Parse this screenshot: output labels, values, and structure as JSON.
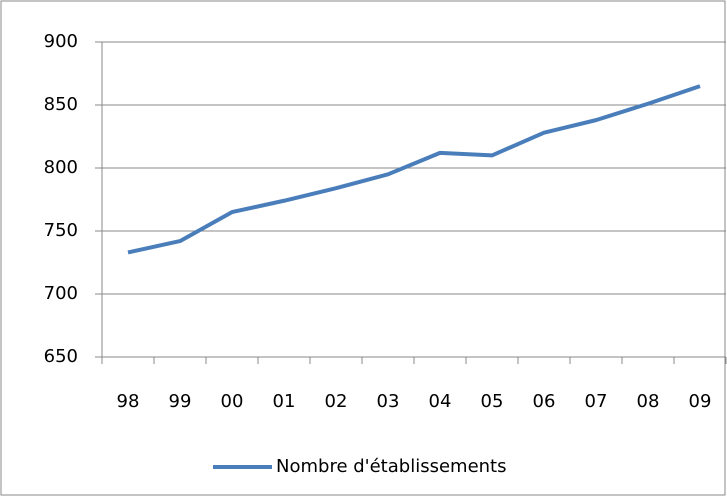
{
  "chart_data": {
    "type": "line",
    "categories": [
      "98",
      "99",
      "00",
      "01",
      "02",
      "03",
      "04",
      "05",
      "06",
      "07",
      "08",
      "09"
    ],
    "series": [
      {
        "name": "Nombre d'établissements",
        "color": "#4a7ebb",
        "values": [
          733,
          742,
          765,
          774,
          784,
          795,
          812,
          810,
          828,
          838,
          851,
          865
        ]
      }
    ],
    "ylim": [
      650,
      900
    ],
    "yticks": [
      650,
      700,
      750,
      800,
      850,
      900
    ],
    "grid": true,
    "legend": "bottom"
  }
}
